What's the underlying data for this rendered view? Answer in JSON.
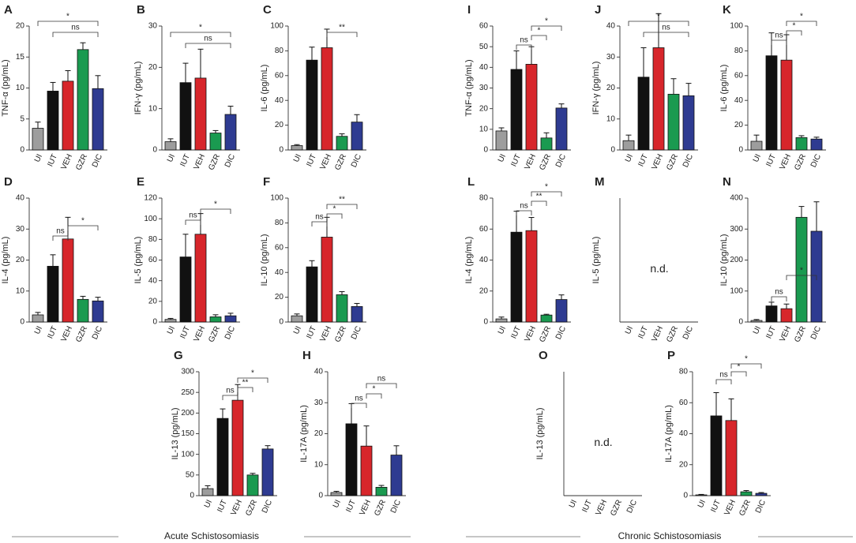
{
  "chart_data": [
    {
      "type": "bar",
      "panel": "A",
      "ylabel": "TNF-α (pg/mL)",
      "categories": [
        "UI",
        "IUT",
        "VEH",
        "GZR",
        "DIC"
      ],
      "colors": [
        "#9d9d9d",
        "#111111",
        "#d7262b",
        "#1a9a50",
        "#2e3b91"
      ],
      "values": [
        3.5,
        9.5,
        11.1,
        16.2,
        9.9
      ],
      "errors": [
        1,
        1.4,
        1.7,
        1.1,
        2.1
      ],
      "ylim": [
        0,
        20
      ],
      "yticks": [
        0,
        5,
        10,
        15,
        20
      ],
      "annotations": [
        "*",
        "ns"
      ]
    },
    {
      "type": "bar",
      "panel": "B",
      "ylabel": "IFN-γ (pg/mL)",
      "categories": [
        "UI",
        "IUT",
        "VEH",
        "GZR",
        "DIC"
      ],
      "colors": [
        "#9d9d9d",
        "#111111",
        "#d7262b",
        "#1a9a50",
        "#2e3b91"
      ],
      "values": [
        2,
        16.3,
        17.4,
        4.1,
        8.6
      ],
      "errors": [
        0.7,
        4.7,
        7,
        0.6,
        2
      ],
      "ylim": [
        0,
        30
      ],
      "yticks": [
        0,
        10,
        20,
        30
      ],
      "annotations": [
        "*",
        "ns"
      ]
    },
    {
      "type": "bar",
      "panel": "C",
      "ylabel": "IL-6 (pg/mL)",
      "categories": [
        "UI",
        "IUT",
        "VEH",
        "GZR",
        "DIC"
      ],
      "colors": [
        "#9d9d9d",
        "#111111",
        "#d7262b",
        "#1a9a50",
        "#2e3b91"
      ],
      "values": [
        3.5,
        72.5,
        82.5,
        11,
        22.5
      ],
      "errors": [
        0.8,
        10.5,
        15,
        2,
        6
      ],
      "ylim": [
        0,
        100
      ],
      "yticks": [
        0,
        20,
        40,
        60,
        80,
        100
      ],
      "annotations": [
        "**"
      ]
    },
    {
      "type": "bar",
      "panel": "D",
      "ylabel": "IL-4 (pg/mL)",
      "categories": [
        "UI",
        "IUT",
        "VEH",
        "GZR",
        "DIC"
      ],
      "colors": [
        "#9d9d9d",
        "#111111",
        "#d7262b",
        "#1a9a50",
        "#2e3b91"
      ],
      "values": [
        2.3,
        18,
        26.8,
        7.3,
        6.8
      ],
      "errors": [
        0.8,
        3.7,
        7,
        1,
        1.2
      ],
      "ylim": [
        0,
        40
      ],
      "yticks": [
        0,
        10,
        20,
        30,
        40
      ],
      "annotations": [
        "ns",
        "*"
      ]
    },
    {
      "type": "bar",
      "panel": "E",
      "ylabel": "IL-5 (pg/mL)",
      "categories": [
        "UI",
        "IUT",
        "VEH",
        "GZR",
        "DIC"
      ],
      "colors": [
        "#9d9d9d",
        "#111111",
        "#d7262b",
        "#1a9a50",
        "#2e3b91"
      ],
      "values": [
        2.5,
        63,
        85,
        5,
        6
      ],
      "errors": [
        1,
        22,
        20,
        2,
        2.5
      ],
      "ylim": [
        0,
        120
      ],
      "yticks": [
        0,
        20,
        40,
        60,
        80,
        100,
        120
      ],
      "annotations": [
        "ns",
        "*"
      ]
    },
    {
      "type": "bar",
      "panel": "F",
      "ylabel": "IL-10 (pg/mL)",
      "categories": [
        "UI",
        "IUT",
        "VEH",
        "GZR",
        "DIC"
      ],
      "colors": [
        "#9d9d9d",
        "#111111",
        "#d7262b",
        "#1a9a50",
        "#2e3b91"
      ],
      "values": [
        5,
        44.5,
        68.5,
        22,
        12.5
      ],
      "errors": [
        1.5,
        5,
        16,
        2.5,
        2.5
      ],
      "ylim": [
        0,
        100
      ],
      "yticks": [
        0,
        20,
        40,
        60,
        80,
        100
      ],
      "annotations": [
        "ns",
        "*",
        "**"
      ]
    },
    {
      "type": "bar",
      "panel": "G",
      "ylabel": "IL-13 (pg/mL)",
      "categories": [
        "UI",
        "IUT",
        "VEH",
        "GZR",
        "DIC"
      ],
      "colors": [
        "#9d9d9d",
        "#111111",
        "#d7262b",
        "#1a9a50",
        "#2e3b91"
      ],
      "values": [
        17,
        187,
        231,
        50,
        113
      ],
      "errors": [
        7,
        23,
        38,
        4,
        8
      ],
      "ylim": [
        0,
        300
      ],
      "yticks": [
        0,
        50,
        100,
        150,
        200,
        250,
        300
      ],
      "annotations": [
        "ns",
        "**",
        "*"
      ]
    },
    {
      "type": "bar",
      "panel": "H",
      "ylabel": "IL-17A (pg/mL)",
      "categories": [
        "UI",
        "IUT",
        "VEH",
        "GZR",
        "DIC"
      ],
      "colors": [
        "#9d9d9d",
        "#111111",
        "#d7262b",
        "#1a9a50",
        "#2e3b91"
      ],
      "values": [
        1,
        23.2,
        16,
        2.7,
        13.1
      ],
      "errors": [
        0.4,
        6.5,
        6.5,
        0.6,
        3
      ],
      "ylim": [
        0,
        40
      ],
      "yticks": [
        0,
        10,
        20,
        30,
        40
      ],
      "annotations": [
        "ns",
        "*",
        "ns"
      ]
    },
    {
      "type": "bar",
      "panel": "I",
      "ylabel": "TNF-α (pg/mL)",
      "categories": [
        "UI",
        "IUT",
        "VEH",
        "GZR",
        "DIC"
      ],
      "colors": [
        "#9d9d9d",
        "#111111",
        "#d7262b",
        "#1a9a50",
        "#2e3b91"
      ],
      "values": [
        9.2,
        39,
        41.5,
        5.8,
        20.3
      ],
      "errors": [
        1.5,
        9,
        8.5,
        2.5,
        2
      ],
      "ylim": [
        0,
        60
      ],
      "yticks": [
        0,
        10,
        20,
        30,
        40,
        50,
        60
      ],
      "annotations": [
        "ns",
        "*",
        "*"
      ]
    },
    {
      "type": "bar",
      "panel": "J",
      "ylabel": "IFN-γ (pg/mL)",
      "categories": [
        "UI",
        "IUT",
        "VEH",
        "GZR",
        "DIC"
      ],
      "colors": [
        "#9d9d9d",
        "#111111",
        "#d7262b",
        "#1a9a50",
        "#2e3b91"
      ],
      "values": [
        3,
        23.5,
        33,
        18,
        17.5
      ],
      "errors": [
        1.8,
        9.5,
        11,
        5,
        4
      ],
      "ylim": [
        0,
        40
      ],
      "yticks": [
        0,
        10,
        20,
        30,
        40
      ],
      "annotations": [
        "*",
        "ns"
      ]
    },
    {
      "type": "bar",
      "panel": "K",
      "ylabel": "IL-6 (pg/mL)",
      "categories": [
        "UI",
        "IUT",
        "VEH",
        "GZR",
        "DIC"
      ],
      "colors": [
        "#9d9d9d",
        "#111111",
        "#d7262b",
        "#1a9a50",
        "#2e3b91"
      ],
      "values": [
        7,
        76,
        72.5,
        10,
        8.8
      ],
      "errors": [
        5,
        18.5,
        20.5,
        1.5,
        1.5
      ],
      "ylim": [
        0,
        100
      ],
      "yticks": [
        0,
        20,
        40,
        60,
        80,
        100
      ],
      "annotations": [
        "ns",
        "*",
        "*"
      ]
    },
    {
      "type": "bar",
      "panel": "L",
      "ylabel": "IL-4 (pg/mL)",
      "categories": [
        "UI",
        "IUT",
        "VEH",
        "GZR",
        "DIC"
      ],
      "colors": [
        "#9d9d9d",
        "#111111",
        "#d7262b",
        "#1a9a50",
        "#2e3b91"
      ],
      "values": [
        2,
        58,
        59,
        4.5,
        14.5
      ],
      "errors": [
        1.2,
        13.5,
        8.5,
        0.5,
        3
      ],
      "ylim": [
        0,
        80
      ],
      "yticks": [
        0,
        20,
        40,
        60,
        80
      ],
      "annotations": [
        "ns",
        "**",
        "*"
      ]
    },
    {
      "type": "bar",
      "panel": "M",
      "ylabel": "IL-5 (pg/mL)",
      "categories": [
        "UI",
        "IUT",
        "VEH",
        "GZR",
        "DIC"
      ],
      "annotations": [
        "n.d."
      ]
    },
    {
      "type": "bar",
      "panel": "N",
      "ylabel": "IL-10 (pg/mL)",
      "categories": [
        "UI",
        "IUT",
        "VEH",
        "GZR",
        "DIC"
      ],
      "colors": [
        "#9d9d9d",
        "#111111",
        "#d7262b",
        "#1a9a50",
        "#2e3b91"
      ],
      "values": [
        5,
        52,
        43,
        338,
        293
      ],
      "errors": [
        3,
        12,
        15,
        35,
        95
      ],
      "ylim": [
        0,
        400
      ],
      "yticks": [
        0,
        100,
        200,
        300,
        400
      ],
      "annotations": [
        "ns",
        "*"
      ]
    },
    {
      "type": "bar",
      "panel": "O",
      "ylabel": "IL-13 (pg/mL)",
      "categories": [
        "UI",
        "IUT",
        "VEH",
        "GZR",
        "DIC"
      ],
      "annotations": [
        "n.d."
      ]
    },
    {
      "type": "bar",
      "panel": "P",
      "ylabel": "IL-17A (pg/mL)",
      "categories": [
        "UI",
        "IUT",
        "VEH",
        "GZR",
        "DIC"
      ],
      "colors": [
        "#9d9d9d",
        "#111111",
        "#d7262b",
        "#1a9a50",
        "#2e3b91"
      ],
      "values": [
        0.5,
        51.5,
        48.5,
        2.5,
        1.5
      ],
      "errors": [
        0.3,
        15,
        14,
        0.8,
        0.5
      ],
      "ylim": [
        0,
        80
      ],
      "yticks": [
        0,
        20,
        40,
        60,
        80
      ],
      "annotations": [
        "ns",
        "*",
        "*"
      ]
    }
  ],
  "groups": [
    "Acute Schistosomiasis",
    "Chronic Schistosomiasis"
  ]
}
